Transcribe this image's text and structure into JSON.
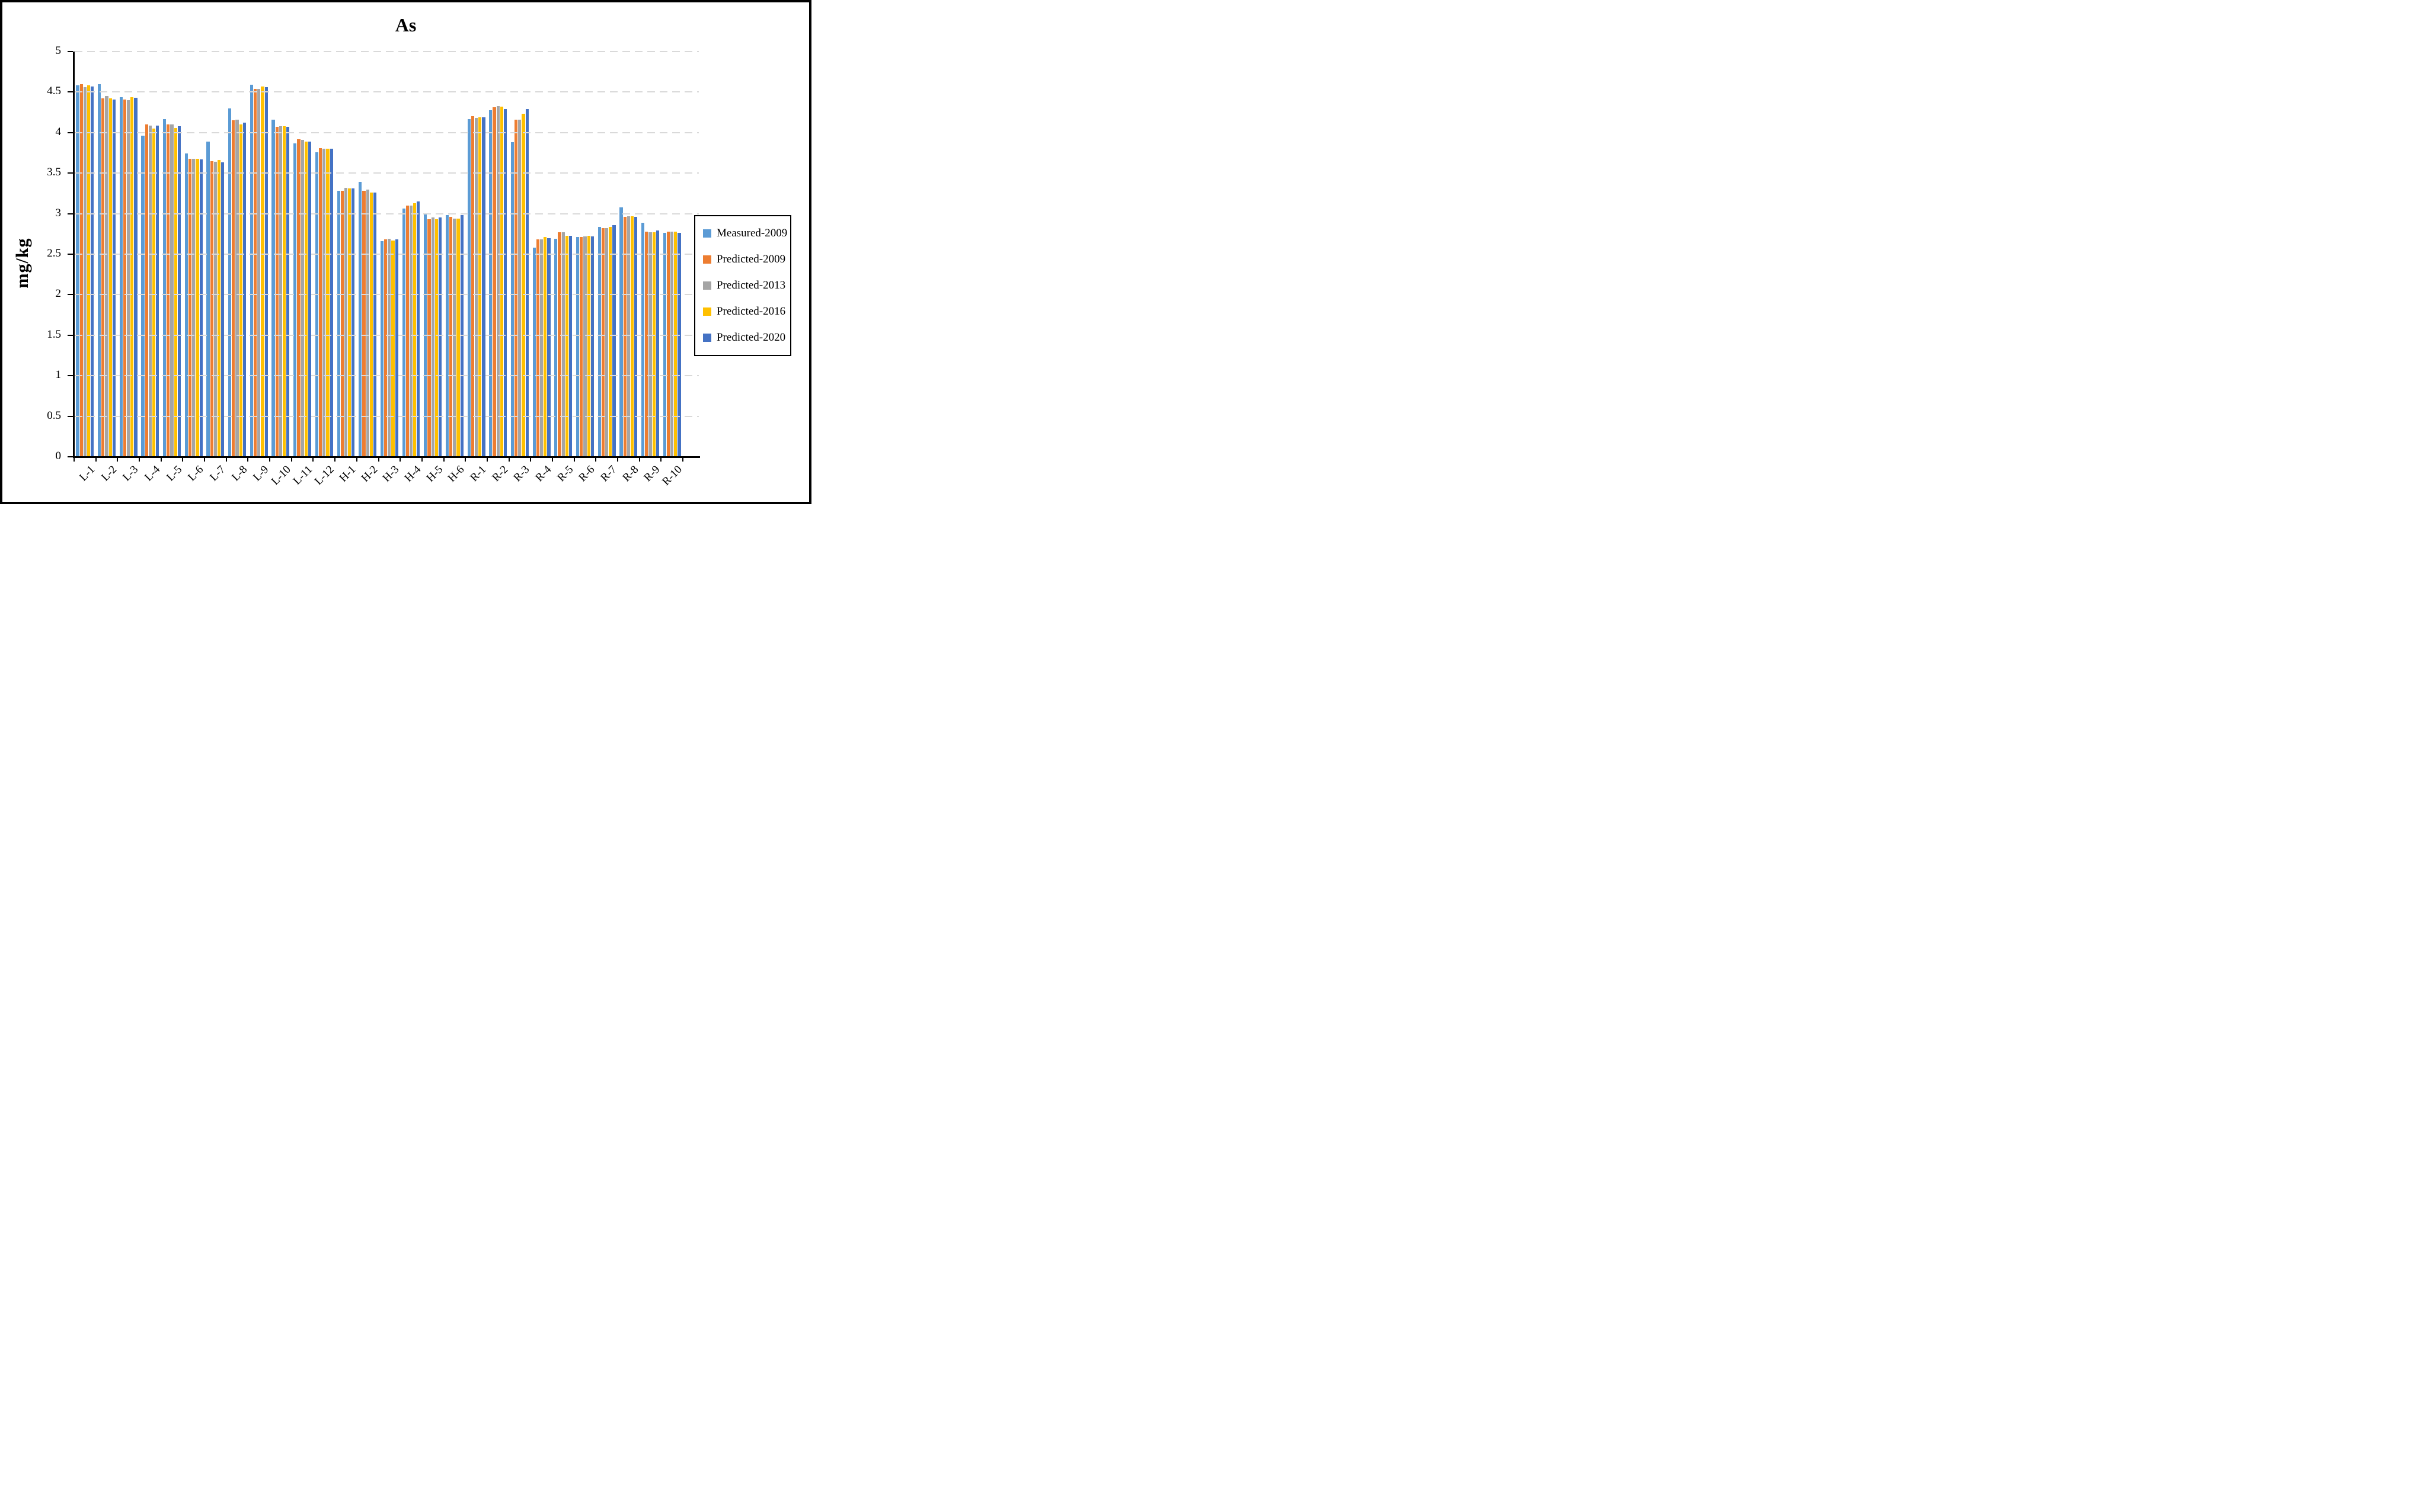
{
  "figure": {
    "title": "As",
    "y_axis_label": "mg/kg"
  },
  "colors": {
    "background": "#FFFFFF",
    "frame": "#000000",
    "axis": "#000000",
    "gridline": "#D9D9D9",
    "text": "#000000"
  },
  "chart_data": {
    "type": "bar",
    "title": "As",
    "xlabel": "",
    "ylabel": "mg/kg",
    "ylim": [
      0,
      5
    ],
    "ytick_step": 0.5,
    "y_ticks": [
      0,
      0.5,
      1,
      1.5,
      2,
      2.5,
      3,
      3.5,
      4,
      4.5,
      5
    ],
    "grid": "horizontal-dashed",
    "legend_position": "right",
    "categories": [
      "L-1",
      "L-2",
      "L-3",
      "L-4",
      "L-5",
      "L-6",
      "L-7",
      "L-8",
      "L-9",
      "L-10",
      "L-11",
      "L-12",
      "H-1",
      "H-2",
      "H-3",
      "H-4",
      "H-5",
      "H-6",
      "R-1",
      "R-2",
      "R-3",
      "R-4",
      "R-5",
      "R-6",
      "R-7",
      "R-8",
      "R-9",
      "R-10"
    ],
    "series": [
      {
        "name": "Measured-2009",
        "color": "#5B9BD5",
        "values": [
          4.58,
          4.6,
          4.44,
          3.96,
          4.17,
          3.74,
          3.89,
          4.3,
          4.59,
          4.16,
          3.87,
          3.76,
          3.28,
          3.39,
          2.66,
          3.06,
          3.0,
          2.98,
          4.17,
          4.28,
          3.88,
          2.58,
          2.69,
          2.71,
          2.84,
          3.08,
          2.89,
          2.76
        ]
      },
      {
        "name": "Predicted-2009",
        "color": "#ED7D31",
        "values": [
          4.6,
          4.42,
          4.41,
          4.1,
          4.1,
          3.68,
          3.65,
          4.15,
          4.54,
          4.07,
          3.92,
          3.81,
          3.28,
          3.28,
          2.68,
          3.1,
          2.93,
          2.96,
          4.2,
          4.31,
          4.16,
          2.68,
          2.77,
          2.71,
          2.82,
          2.96,
          2.78,
          2.78
        ]
      },
      {
        "name": "Predicted-2013",
        "color": "#A5A5A5",
        "values": [
          4.56,
          4.45,
          4.4,
          4.09,
          4.1,
          3.68,
          3.64,
          4.16,
          4.54,
          4.08,
          3.91,
          3.8,
          3.32,
          3.3,
          2.69,
          3.1,
          2.95,
          2.94,
          4.18,
          4.33,
          4.16,
          2.68,
          2.77,
          2.72,
          2.82,
          2.97,
          2.77,
          2.78
        ]
      },
      {
        "name": "Predicted-2016",
        "color": "#FFC000",
        "values": [
          4.58,
          4.42,
          4.44,
          4.05,
          4.06,
          3.68,
          3.66,
          4.1,
          4.57,
          4.08,
          3.89,
          3.8,
          3.31,
          3.26,
          2.67,
          3.13,
          2.93,
          2.94,
          4.19,
          4.32,
          4.23,
          2.71,
          2.73,
          2.73,
          2.84,
          2.97,
          2.77,
          2.78
        ]
      },
      {
        "name": "Predicted-2020",
        "color": "#4472C4",
        "values": [
          4.57,
          4.41,
          4.43,
          4.09,
          4.08,
          3.67,
          3.63,
          4.12,
          4.56,
          4.07,
          3.89,
          3.8,
          3.31,
          3.26,
          2.68,
          3.15,
          2.95,
          2.98,
          4.19,
          4.29,
          4.29,
          2.7,
          2.73,
          2.72,
          2.86,
          2.96,
          2.79,
          2.76
        ]
      }
    ]
  }
}
